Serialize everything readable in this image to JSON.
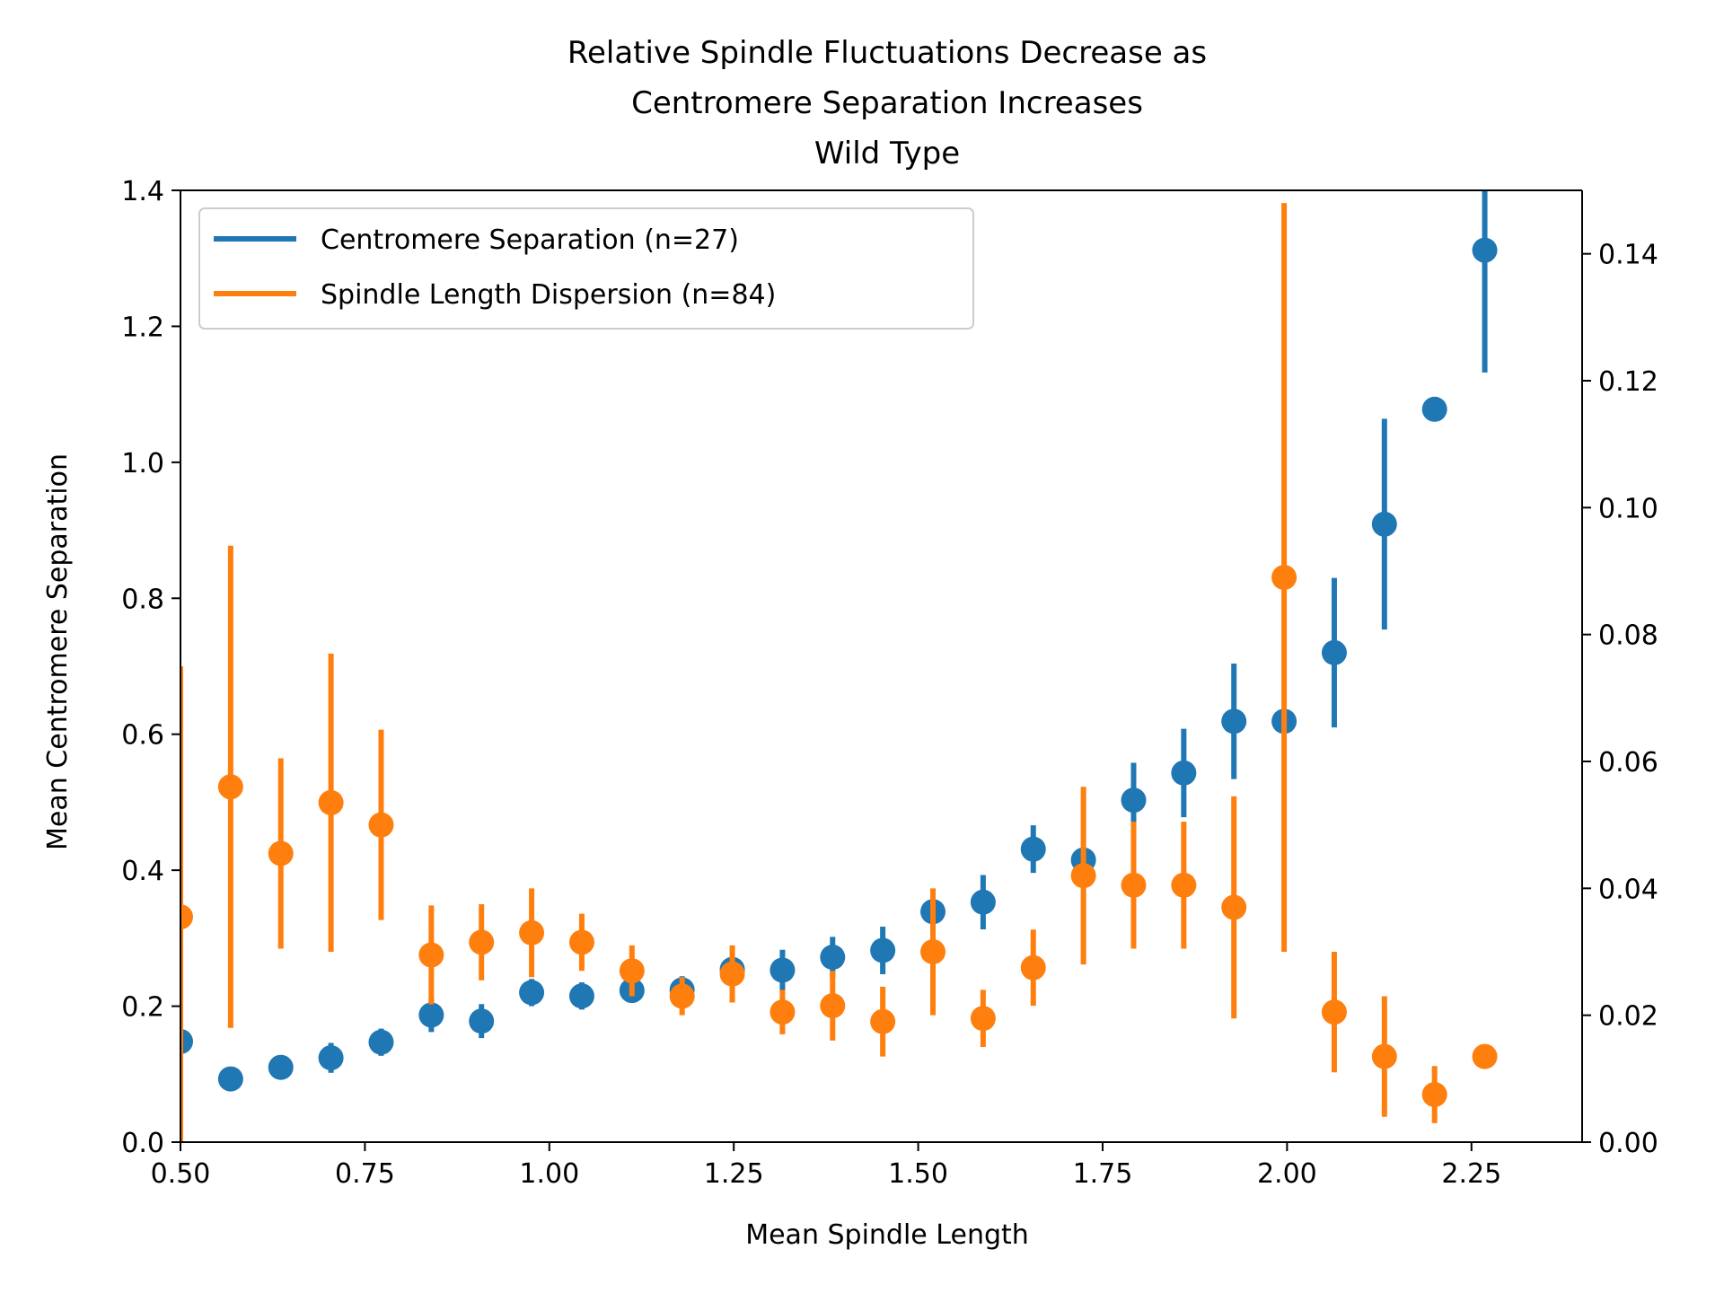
{
  "chart_data": {
    "type": "scatter",
    "title": [
      "Relative Spindle Fluctuations Decrease as",
      "Centromere Separation Increases",
      "Wild Type"
    ],
    "xlabel": "Mean Spindle Length",
    "ylabel": "Mean Centromere Separation",
    "y2label": "",
    "xlim": [
      0.5,
      2.4
    ],
    "ylim": [
      0.0,
      1.4
    ],
    "y2lim": [
      0.0,
      0.15
    ],
    "x_ticks": [
      0.5,
      0.75,
      1.0,
      1.25,
      1.5,
      1.75,
      2.0,
      2.25
    ],
    "x_tick_labels": [
      "0.50",
      "0.75",
      "1.00",
      "1.25",
      "1.50",
      "1.75",
      "2.00",
      "2.25"
    ],
    "y_ticks": [
      0.0,
      0.2,
      0.4,
      0.6,
      0.8,
      1.0,
      1.2,
      1.4
    ],
    "y_tick_labels": [
      "0.0",
      "0.2",
      "0.4",
      "0.6",
      "0.8",
      "1.0",
      "1.2",
      "1.4"
    ],
    "y2_ticks": [
      0.0,
      0.02,
      0.04,
      0.06,
      0.08,
      0.1,
      0.12,
      0.14
    ],
    "y2_tick_labels": [
      "0.00",
      "0.02",
      "0.04",
      "0.06",
      "0.08",
      "0.10",
      "0.12",
      "0.14"
    ],
    "grid": false,
    "legend_position": "top-left",
    "series": [
      {
        "name": "Centromere Separation (n=27)",
        "axis": "left",
        "color": "#1f77b4",
        "x": [
          0.5,
          0.568,
          0.636,
          0.704,
          0.772,
          0.84,
          0.908,
          0.976,
          1.044,
          1.112,
          1.18,
          1.248,
          1.316,
          1.384,
          1.452,
          1.52,
          1.588,
          1.656,
          1.724,
          1.792,
          1.86,
          1.928,
          1.996,
          2.064,
          2.132,
          2.2,
          2.268
        ],
        "y": [
          0.148,
          0.093,
          0.11,
          0.124,
          0.147,
          0.187,
          0.178,
          0.22,
          0.215,
          0.223,
          0.224,
          0.254,
          0.253,
          0.272,
          0.282,
          0.339,
          0.353,
          0.431,
          0.415,
          0.503,
          0.543,
          0.619,
          0.619,
          0.72,
          0.909,
          1.078,
          1.312
        ],
        "err": [
          0.015,
          0.012,
          0.012,
          0.022,
          0.02,
          0.025,
          0.025,
          0.02,
          0.02,
          0.015,
          0.02,
          0.02,
          0.03,
          0.03,
          0.035,
          0.02,
          0.04,
          0.035,
          0.015,
          0.055,
          0.065,
          0.085,
          0.015,
          0.11,
          0.155,
          0.015,
          0.18
        ]
      },
      {
        "name": "Spindle Length Dispersion (n=84)",
        "axis": "right",
        "color": "#ff7f0e",
        "x": [
          0.5,
          0.568,
          0.636,
          0.704,
          0.772,
          0.84,
          0.908,
          0.976,
          1.044,
          1.112,
          1.18,
          1.248,
          1.316,
          1.384,
          1.452,
          1.52,
          1.588,
          1.656,
          1.724,
          1.792,
          1.86,
          1.928,
          1.996,
          2.064,
          2.132,
          2.2,
          2.268
        ],
        "y": [
          0.0355,
          0.056,
          0.0455,
          0.0535,
          0.05,
          0.0295,
          0.0315,
          0.033,
          0.0315,
          0.027,
          0.023,
          0.0265,
          0.0205,
          0.0215,
          0.019,
          0.03,
          0.0195,
          0.0275,
          0.042,
          0.0405,
          0.0405,
          0.037,
          0.089,
          0.0205,
          0.0135,
          0.0075,
          0.0135
        ],
        "err": [
          0.0395,
          0.038,
          0.015,
          0.0235,
          0.015,
          0.0078,
          0.006,
          0.007,
          0.0045,
          0.004,
          0.003,
          0.0045,
          0.0035,
          0.0055,
          0.0055,
          0.01,
          0.0045,
          0.006,
          0.014,
          0.01,
          0.01,
          0.0175,
          0.059,
          0.0095,
          0.0095,
          0.0045,
          0.0015
        ]
      }
    ]
  }
}
